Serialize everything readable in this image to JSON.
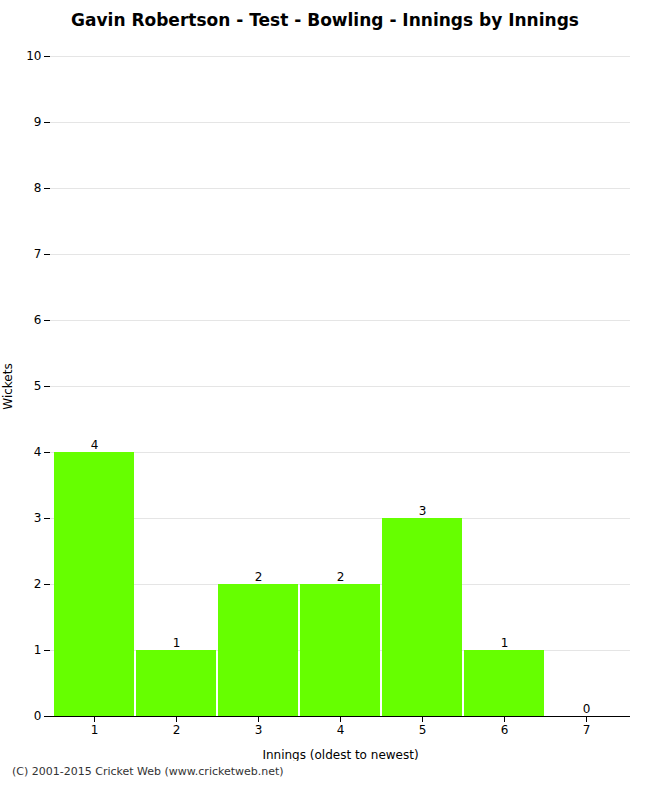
{
  "chart_data": {
    "type": "bar",
    "title": "Gavin Robertson - Test - Bowling - Innings by Innings",
    "xlabel": "Innings (oldest to newest)",
    "ylabel": "Wickets",
    "categories": [
      1,
      2,
      3,
      4,
      5,
      6,
      7
    ],
    "values": [
      4,
      1,
      2,
      2,
      3,
      1,
      0
    ],
    "color": "#66ff00",
    "ylim": [
      0,
      10
    ],
    "yticks": [
      0,
      1,
      2,
      3,
      4,
      5,
      6,
      7,
      8,
      9,
      10
    ],
    "grid": true,
    "data_labels": true,
    "annotation": "(C) 2001-2015 Cricket Web (www.cricketweb.net)"
  }
}
